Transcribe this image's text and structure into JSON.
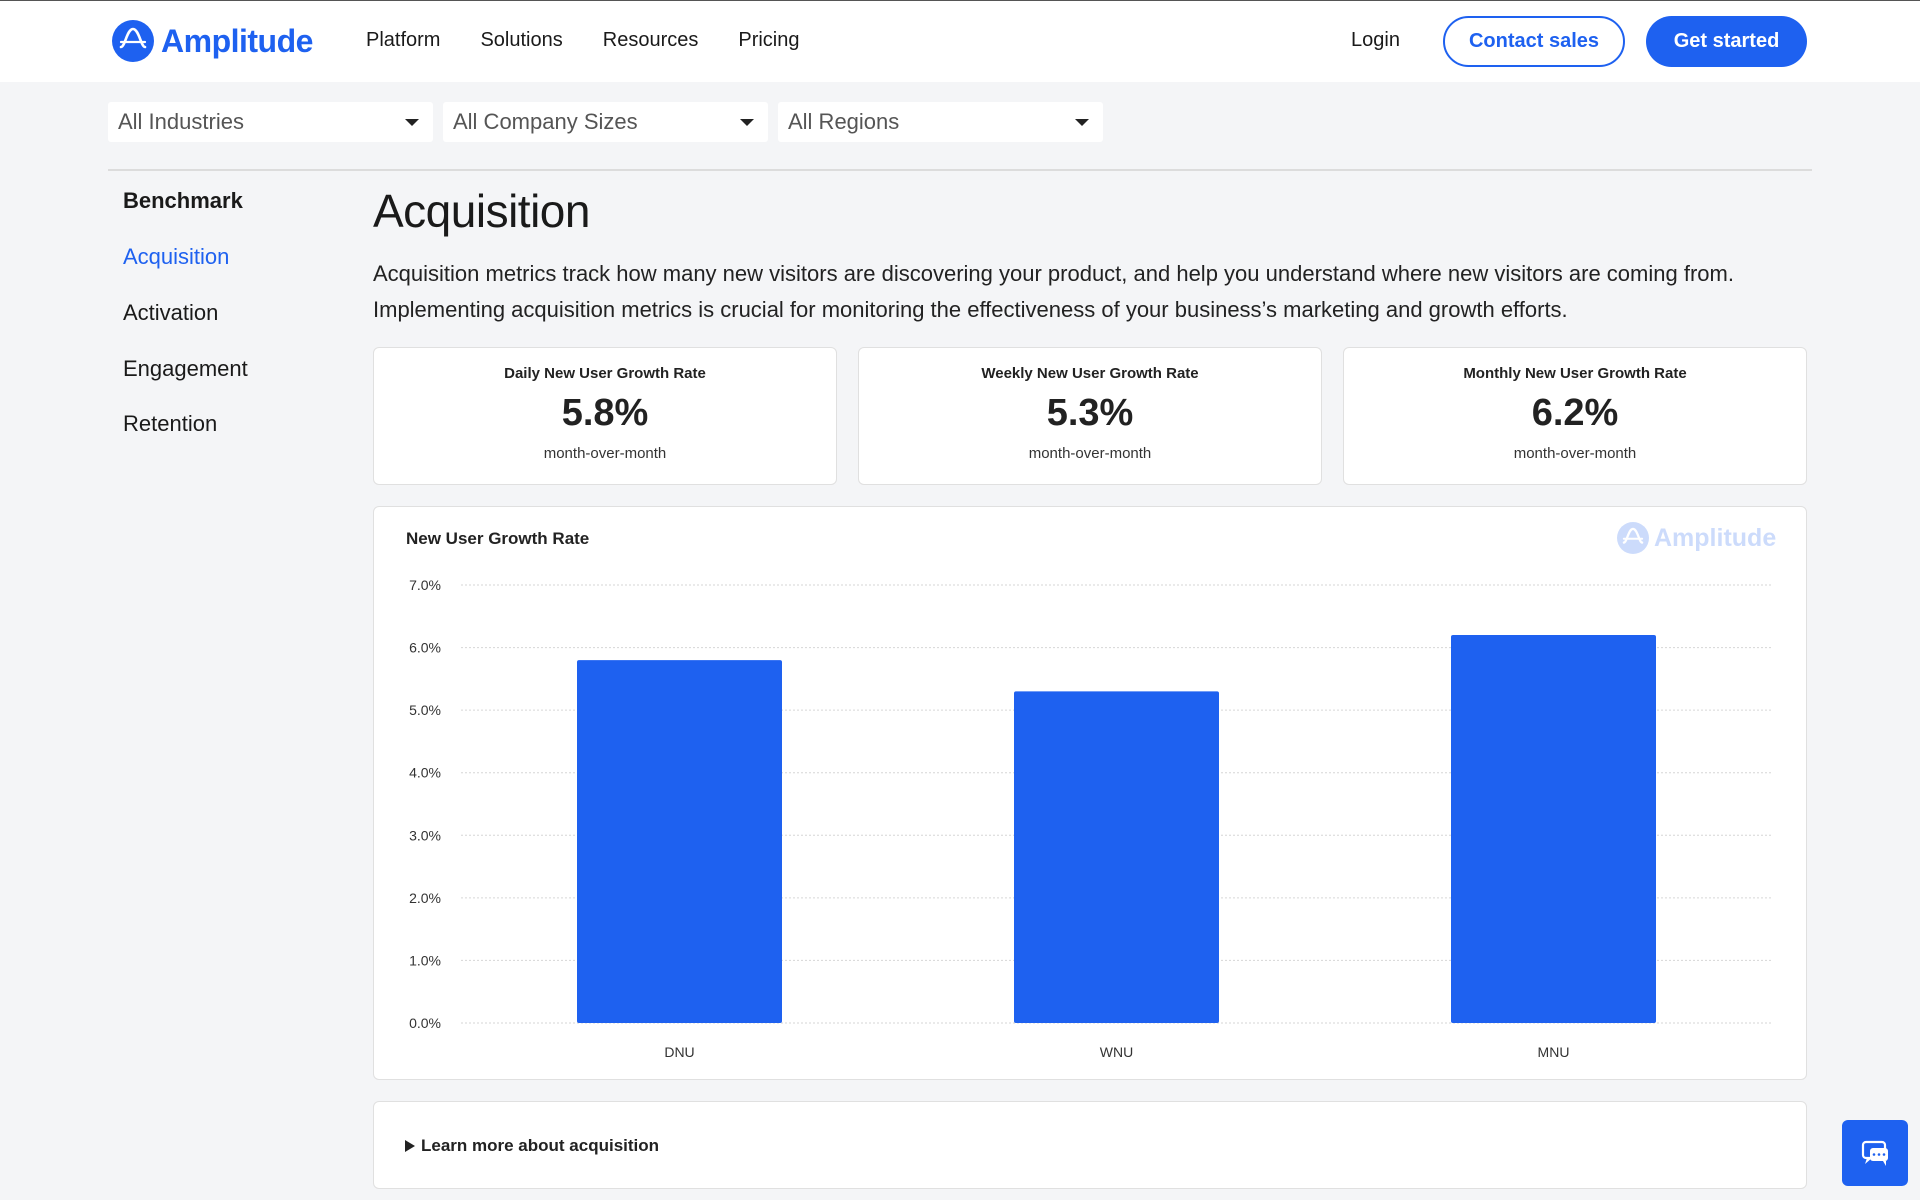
{
  "brand": {
    "name": "Amplitude",
    "accent": "#1e61f0",
    "icon": "amplitude-logo-icon"
  },
  "nav": {
    "links": [
      "Platform",
      "Solutions",
      "Resources",
      "Pricing"
    ],
    "login": "Login",
    "contact_sales": "Contact sales",
    "get_started": "Get started"
  },
  "filters": [
    {
      "value": "All Industries"
    },
    {
      "value": "All Company Sizes"
    },
    {
      "value": "All Regions"
    }
  ],
  "sidebar": {
    "title": "Benchmark",
    "items": [
      {
        "label": "Acquisition",
        "active": true
      },
      {
        "label": "Activation",
        "active": false
      },
      {
        "label": "Engagement",
        "active": false
      },
      {
        "label": "Retention",
        "active": false
      }
    ]
  },
  "main": {
    "title": "Acquisition",
    "description": "Acquisition metrics track how many new visitors are discovering your product, and help you understand where new visitors are coming from. Implementing acquisition metrics is crucial for monitoring the effectiveness of your business’s marketing and growth efforts.",
    "cards": [
      {
        "label": "Daily New User Growth Rate",
        "value": "5.8%",
        "sub": "month-over-month"
      },
      {
        "label": "Weekly New User Growth Rate",
        "value": "5.3%",
        "sub": "month-over-month"
      },
      {
        "label": "Monthly New User Growth Rate",
        "value": "6.2%",
        "sub": "month-over-month"
      }
    ],
    "learn_more": "Learn more about acquisition"
  },
  "chart_data": {
    "type": "bar",
    "title": "New User Growth Rate",
    "watermark": "Amplitude",
    "categories": [
      "DNU",
      "WNU",
      "MNU"
    ],
    "values": [
      5.8,
      5.3,
      6.2
    ],
    "yticks": [
      "0.0%",
      "1.0%",
      "2.0%",
      "3.0%",
      "4.0%",
      "5.0%",
      "6.0%",
      "7.0%"
    ],
    "ylim": [
      0,
      7
    ],
    "grid": true,
    "bar_color": "#1e61f0"
  },
  "chat": {
    "icon": "chat-bubbles-icon"
  }
}
